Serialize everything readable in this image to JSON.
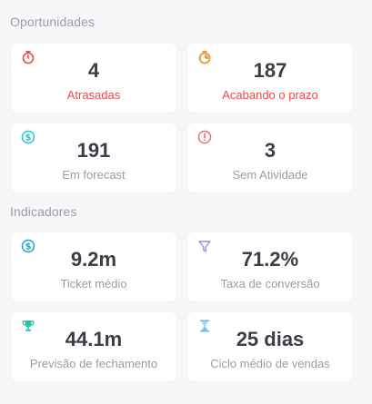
{
  "sections": {
    "opportunities": "Oportunidades",
    "indicators": "Indicadores"
  },
  "opportunities": [
    {
      "value": "4",
      "label": "Atrasadas",
      "icon": "stopwatch-icon"
    },
    {
      "value": "187",
      "label": "Acabando o prazo",
      "icon": "timer-icon"
    },
    {
      "value": "191",
      "label": "Em forecast",
      "icon": "dollar-circle-icon"
    },
    {
      "value": "3",
      "label": "Sem Atividade",
      "icon": "alert-circle-icon"
    }
  ],
  "indicators": [
    {
      "value": "9.2m",
      "label": "Ticket médio",
      "icon": "dollar-circle-icon"
    },
    {
      "value": "71.2%",
      "label": "Taxa de conversão",
      "icon": "funnel-icon"
    },
    {
      "value": "44.1m",
      "label": "Previsão de fechamento",
      "icon": "trophy-icon"
    },
    {
      "value": "25 dias",
      "label": "Ciclo médio de vendas",
      "icon": "hourglass-icon"
    }
  ],
  "colors": {
    "background": "#f7f7f9",
    "card": "#ffffff",
    "value_text": "#3d3d48",
    "muted_text": "#9b9ba6",
    "alert_label": "#ea4b48",
    "stopwatch": "#ea4b48",
    "timer": "#f0932b",
    "dollar": "#1ec8c8",
    "alert_circle": "#ea6f6f",
    "dollar_indicator": "#14a6d6",
    "funnel": "#9a8fe0",
    "trophy": "#1ec8b0",
    "hourglass": "#6fb4f0"
  }
}
